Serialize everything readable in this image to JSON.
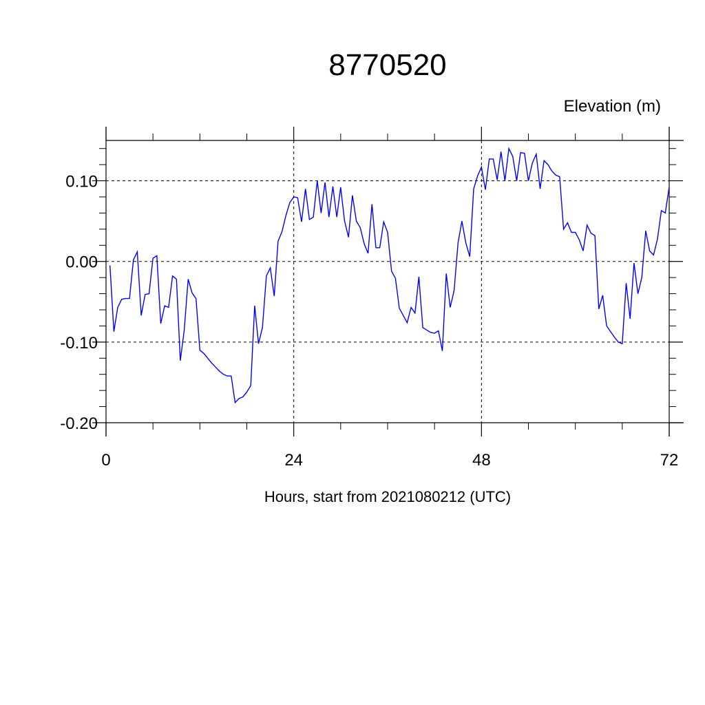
{
  "chart_data": {
    "type": "line",
    "title": "8770520",
    "ylabel": "Elevation (m)",
    "xlabel": "Hours, start from 2021080212 (UTC)",
    "xlim": [
      0,
      72
    ],
    "ylim": [
      -0.2,
      0.15
    ],
    "x_ticks": [
      {
        "value": 0,
        "label": "0"
      },
      {
        "value": 24,
        "label": "24"
      },
      {
        "value": 48,
        "label": "48"
      },
      {
        "value": 72,
        "label": "72"
      }
    ],
    "y_ticks": [
      {
        "value": 0.1,
        "label": "0.10"
      },
      {
        "value": 0.0,
        "label": "0.00"
      },
      {
        "value": -0.1,
        "label": "-0.10"
      },
      {
        "value": -0.2,
        "label": "-0.20"
      }
    ],
    "grid": true,
    "series": [
      {
        "color": "#0000ff",
        "x": [
          0.5,
          1.0,
          1.5,
          2.0,
          2.5,
          3.0,
          3.5,
          4.0,
          4.5,
          5.0,
          5.5,
          6.0,
          6.5,
          7.0,
          7.5,
          8.0,
          8.5,
          9.0,
          9.5,
          10.0,
          10.5,
          11.0,
          11.5,
          12.0,
          12.5,
          13.0,
          13.5,
          14.0,
          14.5,
          15.0,
          15.5,
          16.0,
          16.5,
          17.0,
          17.5,
          18.0,
          18.5,
          19.0,
          19.5,
          20.0,
          20.5,
          21.0,
          21.5,
          22.0,
          22.5,
          23.0,
          23.5,
          24.0,
          24.5,
          25.0,
          25.5,
          26.0,
          26.5,
          27.0,
          27.5,
          28.0,
          28.5,
          29.0,
          29.5,
          30.0,
          30.5,
          31.0,
          31.5,
          32.0,
          32.5,
          33.0,
          33.5,
          34.0,
          34.5,
          35.0,
          35.5,
          36.0,
          36.5,
          37.0,
          37.5,
          38.0,
          38.5,
          39.0,
          39.5,
          40.0,
          40.5,
          41.0,
          41.5,
          42.0,
          42.5,
          43.0,
          43.5,
          44.0,
          44.5,
          45.0,
          45.5,
          46.0,
          46.5,
          47.0,
          47.5,
          48.0,
          48.5,
          49.0,
          49.5,
          50.0,
          50.5,
          51.0,
          51.5,
          52.0,
          52.5,
          53.0,
          53.5,
          54.0,
          54.5,
          55.0,
          55.5,
          56.0,
          56.5,
          57.0,
          57.5,
          58.0,
          58.5,
          59.0,
          59.5,
          60.0,
          60.5,
          61.0,
          61.5,
          62.0,
          62.5,
          63.0,
          63.5,
          64.0,
          64.5,
          65.0,
          65.5,
          66.0,
          66.5,
          67.0,
          67.5,
          68.0,
          68.5,
          69.0,
          69.5,
          70.0,
          70.5,
          71.0,
          71.5,
          72.0
        ],
        "y": [
          -0.005,
          -0.087,
          -0.057,
          -0.047,
          -0.046,
          -0.046,
          0.002,
          0.012,
          -0.067,
          -0.041,
          -0.04,
          0.004,
          0.007,
          -0.077,
          -0.055,
          -0.057,
          -0.018,
          -0.022,
          -0.123,
          -0.085,
          -0.022,
          -0.039,
          -0.046,
          -0.11,
          -0.114,
          -0.12,
          -0.126,
          -0.131,
          -0.136,
          -0.14,
          -0.142,
          -0.142,
          -0.175,
          -0.17,
          -0.168,
          -0.162,
          -0.154,
          -0.055,
          -0.102,
          -0.082,
          -0.018,
          -0.008,
          -0.043,
          0.025,
          0.037,
          0.057,
          0.073,
          0.08,
          0.079,
          0.049,
          0.09,
          0.052,
          0.055,
          0.1,
          0.06,
          0.098,
          0.055,
          0.093,
          0.055,
          0.092,
          0.05,
          0.03,
          0.082,
          0.05,
          0.042,
          0.022,
          0.01,
          0.071,
          0.017,
          0.017,
          0.049,
          0.036,
          -0.012,
          -0.021,
          -0.058,
          -0.067,
          -0.076,
          -0.057,
          -0.064,
          -0.019,
          -0.082,
          -0.085,
          -0.088,
          -0.089,
          -0.086,
          -0.111,
          -0.015,
          -0.057,
          -0.036,
          0.023,
          0.05,
          0.023,
          0.006,
          0.09,
          0.106,
          0.117,
          0.089,
          0.127,
          0.127,
          0.101,
          0.136,
          0.1,
          0.14,
          0.13,
          0.1,
          0.135,
          0.134,
          0.1,
          0.122,
          0.133,
          0.09,
          0.125,
          0.12,
          0.112,
          0.107,
          0.105,
          0.04,
          0.048,
          0.036,
          0.036,
          0.027,
          0.013,
          0.045,
          0.035,
          0.032,
          -0.059,
          -0.042,
          -0.08,
          -0.087,
          -0.094,
          -0.1,
          -0.102,
          -0.027,
          -0.071,
          -0.002,
          -0.04,
          -0.02,
          0.038,
          0.013,
          0.008,
          0.028,
          0.063,
          0.06,
          0.092
        ]
      }
    ]
  }
}
